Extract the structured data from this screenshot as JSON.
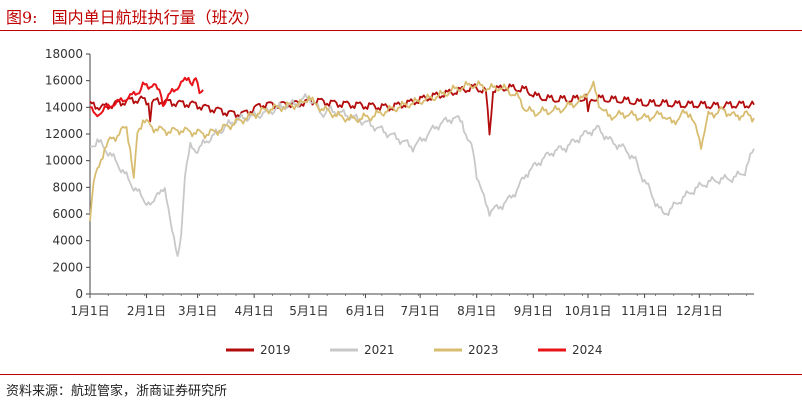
{
  "header": {
    "figure_number": "图9:",
    "title": "国内单日航班执行量（班次）"
  },
  "footer": {
    "source": "资料来源：航班管家，浙商证券研究所"
  },
  "chart_data": {
    "type": "line",
    "title": "国内单日航班执行量（班次）",
    "xlabel": "",
    "ylabel": "",
    "ylim": [
      0,
      18000
    ],
    "yticks": [
      0,
      2000,
      4000,
      6000,
      8000,
      10000,
      12000,
      14000,
      16000,
      18000
    ],
    "x_range": [
      1,
      365
    ],
    "xticks": [
      {
        "day": 1,
        "label": "1月1日"
      },
      {
        "day": 32,
        "label": "2月1日"
      },
      {
        "day": 60,
        "label": "3月1日"
      },
      {
        "day": 91,
        "label": "4月1日"
      },
      {
        "day": 121,
        "label": "5月1日"
      },
      {
        "day": 152,
        "label": "6月1日"
      },
      {
        "day": 182,
        "label": "7月1日"
      },
      {
        "day": 213,
        "label": "8月1日"
      },
      {
        "day": 244,
        "label": "9月1日"
      },
      {
        "day": 274,
        "label": "10月1日"
      },
      {
        "day": 305,
        "label": "11月1日"
      },
      {
        "day": 335,
        "label": "12月1日"
      }
    ],
    "grid": false,
    "legend_position": "bottom",
    "series": [
      {
        "name": "2019",
        "color": "#b30c0c",
        "points": [
          [
            1,
            14200
          ],
          [
            8,
            14000
          ],
          [
            15,
            14250
          ],
          [
            22,
            14500
          ],
          [
            29,
            14600
          ],
          [
            33,
            14400
          ],
          [
            34,
            13200
          ],
          [
            35,
            14300
          ],
          [
            38,
            14500
          ],
          [
            43,
            14400
          ],
          [
            50,
            14300
          ],
          [
            57,
            14250
          ],
          [
            64,
            14000
          ],
          [
            71,
            13800
          ],
          [
            78,
            13550
          ],
          [
            85,
            13500
          ],
          [
            91,
            13900
          ],
          [
            95,
            14200
          ],
          [
            105,
            14200
          ],
          [
            115,
            14300
          ],
          [
            125,
            14500
          ],
          [
            135,
            14300
          ],
          [
            145,
            14200
          ],
          [
            155,
            14100
          ],
          [
            165,
            14000
          ],
          [
            175,
            14300
          ],
          [
            185,
            14700
          ],
          [
            195,
            15000
          ],
          [
            205,
            15300
          ],
          [
            212,
            15500
          ],
          [
            218,
            15200
          ],
          [
            220,
            12000
          ],
          [
            222,
            15300
          ],
          [
            230,
            15500
          ],
          [
            240,
            15300
          ],
          [
            246,
            14800
          ],
          [
            255,
            14600
          ],
          [
            265,
            14600
          ],
          [
            273,
            14700
          ],
          [
            274,
            13600
          ],
          [
            276,
            14700
          ],
          [
            285,
            14600
          ],
          [
            295,
            14500
          ],
          [
            305,
            14300
          ],
          [
            315,
            14300
          ],
          [
            325,
            14200
          ],
          [
            335,
            14200
          ],
          [
            345,
            14100
          ],
          [
            355,
            14200
          ],
          [
            365,
            14200
          ]
        ]
      },
      {
        "name": "2021",
        "color": "#c8c8c8",
        "points": [
          [
            1,
            11000
          ],
          [
            5,
            11500
          ],
          [
            10,
            10800
          ],
          [
            15,
            10000
          ],
          [
            20,
            9000
          ],
          [
            25,
            8000
          ],
          [
            30,
            7200
          ],
          [
            35,
            6500
          ],
          [
            38,
            7800
          ],
          [
            42,
            7600
          ],
          [
            44,
            6500
          ],
          [
            47,
            4200
          ],
          [
            49,
            2500
          ],
          [
            51,
            4500
          ],
          [
            53,
            9000
          ],
          [
            56,
            11000
          ],
          [
            60,
            10800
          ],
          [
            65,
            11500
          ],
          [
            70,
            12000
          ],
          [
            75,
            12500
          ],
          [
            80,
            13000
          ],
          [
            85,
            13200
          ],
          [
            90,
            13300
          ],
          [
            95,
            13500
          ],
          [
            100,
            13700
          ],
          [
            105,
            14000
          ],
          [
            110,
            14200
          ],
          [
            115,
            14300
          ],
          [
            118,
            14600
          ],
          [
            121,
            14800
          ],
          [
            124,
            14300
          ],
          [
            128,
            13500
          ],
          [
            132,
            13800
          ],
          [
            140,
            13500
          ],
          [
            150,
            13000
          ],
          [
            158,
            12500
          ],
          [
            165,
            12000
          ],
          [
            172,
            11500
          ],
          [
            178,
            11000
          ],
          [
            185,
            11800
          ],
          [
            190,
            12500
          ],
          [
            195,
            12900
          ],
          [
            200,
            13200
          ],
          [
            205,
            13000
          ],
          [
            208,
            11500
          ],
          [
            211,
            10800
          ],
          [
            213,
            9000
          ],
          [
            216,
            7500
          ],
          [
            220,
            6200
          ],
          [
            225,
            6500
          ],
          [
            230,
            7000
          ],
          [
            235,
            7800
          ],
          [
            240,
            9000
          ],
          [
            248,
            10000
          ],
          [
            255,
            10700
          ],
          [
            262,
            11000
          ],
          [
            270,
            11800
          ],
          [
            275,
            12200
          ],
          [
            280,
            12400
          ],
          [
            285,
            11600
          ],
          [
            290,
            11200
          ],
          [
            295,
            10800
          ],
          [
            300,
            10000
          ],
          [
            303,
            9000
          ],
          [
            307,
            8000
          ],
          [
            311,
            6900
          ],
          [
            315,
            6000
          ],
          [
            319,
            6300
          ],
          [
            325,
            7100
          ],
          [
            333,
            7900
          ],
          [
            340,
            8400
          ],
          [
            347,
            8600
          ],
          [
            354,
            8700
          ],
          [
            360,
            9200
          ],
          [
            363,
            10200
          ],
          [
            365,
            10900
          ]
        ]
      },
      {
        "name": "2023",
        "color": "#d8bd70",
        "points": [
          [
            1,
            5800
          ],
          [
            3,
            8500
          ],
          [
            6,
            9500
          ],
          [
            9,
            11000
          ],
          [
            12,
            11500
          ],
          [
            15,
            11800
          ],
          [
            18,
            12200
          ],
          [
            21,
            12500
          ],
          [
            23,
            11000
          ],
          [
            25,
            8500
          ],
          [
            27,
            12000
          ],
          [
            30,
            13100
          ],
          [
            35,
            12500
          ],
          [
            40,
            12300
          ],
          [
            45,
            12200
          ],
          [
            50,
            12300
          ],
          [
            55,
            12200
          ],
          [
            60,
            12100
          ],
          [
            65,
            12000
          ],
          [
            70,
            12200
          ],
          [
            75,
            12500
          ],
          [
            80,
            12800
          ],
          [
            85,
            13100
          ],
          [
            90,
            13400
          ],
          [
            95,
            13700
          ],
          [
            100,
            13900
          ],
          [
            110,
            14100
          ],
          [
            118,
            14300
          ],
          [
            121,
            14900
          ],
          [
            124,
            14200
          ],
          [
            130,
            13800
          ],
          [
            138,
            13300
          ],
          [
            145,
            13100
          ],
          [
            155,
            13300
          ],
          [
            165,
            13800
          ],
          [
            172,
            14100
          ],
          [
            180,
            14400
          ],
          [
            188,
            14700
          ],
          [
            195,
            15000
          ],
          [
            200,
            15300
          ],
          [
            205,
            15500
          ],
          [
            210,
            15700
          ],
          [
            215,
            15600
          ],
          [
            220,
            15400
          ],
          [
            225,
            15500
          ],
          [
            230,
            15300
          ],
          [
            236,
            14700
          ],
          [
            240,
            13800
          ],
          [
            245,
            13600
          ],
          [
            250,
            13700
          ],
          [
            258,
            13800
          ],
          [
            265,
            14200
          ],
          [
            270,
            14500
          ],
          [
            274,
            15200
          ],
          [
            277,
            15600
          ],
          [
            280,
            14300
          ],
          [
            285,
            13300
          ],
          [
            295,
            13500
          ],
          [
            305,
            13200
          ],
          [
            315,
            13500
          ],
          [
            320,
            12800
          ],
          [
            326,
            13500
          ],
          [
            330,
            13600
          ],
          [
            334,
            12000
          ],
          [
            336,
            11200
          ],
          [
            340,
            13400
          ],
          [
            348,
            13800
          ],
          [
            355,
            13300
          ],
          [
            360,
            13500
          ],
          [
            365,
            13200
          ]
        ]
      },
      {
        "name": "2024",
        "color": "#e8141a",
        "points": [
          [
            1,
            14100
          ],
          [
            4,
            13300
          ],
          [
            8,
            13800
          ],
          [
            12,
            14100
          ],
          [
            16,
            14400
          ],
          [
            20,
            14600
          ],
          [
            24,
            14900
          ],
          [
            28,
            15200
          ],
          [
            30,
            15700
          ],
          [
            33,
            15500
          ],
          [
            36,
            15800
          ],
          [
            38,
            15300
          ],
          [
            40,
            15000
          ],
          [
            41,
            14200
          ],
          [
            43,
            14600
          ],
          [
            46,
            15200
          ],
          [
            49,
            15500
          ],
          [
            52,
            15900
          ],
          [
            55,
            16300
          ],
          [
            57,
            15700
          ],
          [
            59,
            16100
          ],
          [
            61,
            15200
          ],
          [
            63,
            15300
          ]
        ]
      }
    ]
  }
}
